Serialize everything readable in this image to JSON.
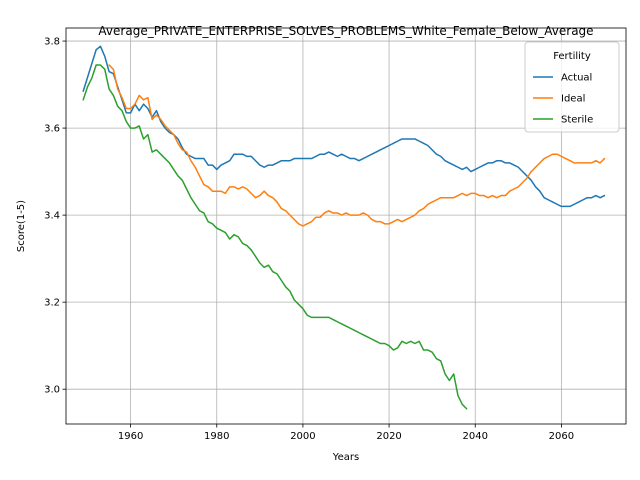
{
  "chart_data": {
    "type": "line",
    "title": "Average_PRIVATE_ENTERPRISE_SOLVES_PROBLEMS_White_Female_Below_Average",
    "xlabel": "Years",
    "ylabel": "Score(1-5)",
    "xlim": [
      1945,
      2075
    ],
    "ylim": [
      2.92,
      3.83
    ],
    "xticks": [
      1960,
      1980,
      2000,
      2020,
      2040,
      2060
    ],
    "yticks": [
      3.0,
      3.2,
      3.4,
      3.6,
      3.8
    ],
    "xtick_labels": [
      "1960",
      "1980",
      "2000",
      "2020",
      "2040",
      "2060"
    ],
    "ytick_labels": [
      "3.0",
      "3.2",
      "3.4",
      "3.6",
      "3.8"
    ],
    "grid": true,
    "legend": {
      "title": "Fertility",
      "position": "top-right"
    },
    "series": [
      {
        "name": "Actual",
        "color": "#1f77b4",
        "x": [
          1949,
          1952,
          1953,
          1954,
          1955,
          1956,
          1957,
          1958,
          1959,
          1960,
          1961,
          1962,
          1963,
          1964,
          1965,
          1966,
          1967,
          1968,
          1969,
          1970,
          1971,
          1972,
          1973,
          1974,
          1975,
          1976,
          1977,
          1978,
          1979,
          1980,
          1981,
          1982,
          1983,
          1984,
          1985,
          1986,
          1987,
          1988,
          1989,
          1990,
          1991,
          1992,
          1993,
          1994,
          1995,
          1996,
          1997,
          1998,
          1999,
          2000,
          2001,
          2002,
          2003,
          2004,
          2005,
          2006,
          2007,
          2008,
          2009,
          2010,
          2011,
          2012,
          2013,
          2014,
          2015,
          2016,
          2017,
          2018,
          2019,
          2020,
          2021,
          2022,
          2023,
          2024,
          2025,
          2026,
          2027,
          2028,
          2029,
          2030,
          2031,
          2032,
          2033,
          2034,
          2035,
          2036,
          2037,
          2038,
          2039,
          2040,
          2041,
          2042,
          2043,
          2044,
          2045,
          2046,
          2047,
          2048,
          2049,
          2050,
          2051,
          2052,
          2053,
          2054,
          2055,
          2056,
          2057,
          2058,
          2059,
          2060,
          2061,
          2062,
          2063,
          2064,
          2065,
          2066,
          2067,
          2068,
          2069,
          2070
        ],
        "values": [
          3.685,
          3.78,
          3.788,
          3.765,
          3.73,
          3.725,
          3.695,
          3.665,
          3.635,
          3.635,
          3.655,
          3.64,
          3.655,
          3.645,
          3.625,
          3.64,
          3.615,
          3.6,
          3.59,
          3.585,
          3.575,
          3.555,
          3.54,
          3.535,
          3.53,
          3.53,
          3.53,
          3.515,
          3.515,
          3.505,
          3.515,
          3.52,
          3.525,
          3.54,
          3.54,
          3.54,
          3.535,
          3.535,
          3.525,
          3.515,
          3.51,
          3.515,
          3.515,
          3.52,
          3.525,
          3.525,
          3.525,
          3.53,
          3.53,
          3.53,
          3.53,
          3.53,
          3.535,
          3.54,
          3.54,
          3.545,
          3.54,
          3.535,
          3.54,
          3.535,
          3.53,
          3.53,
          3.525,
          3.53,
          3.535,
          3.54,
          3.545,
          3.55,
          3.555,
          3.56,
          3.565,
          3.57,
          3.575,
          3.575,
          3.575,
          3.575,
          3.57,
          3.565,
          3.56,
          3.55,
          3.54,
          3.535,
          3.525,
          3.52,
          3.515,
          3.51,
          3.505,
          3.51,
          3.5,
          3.505,
          3.51,
          3.515,
          3.52,
          3.52,
          3.525,
          3.525,
          3.52,
          3.52,
          3.515,
          3.51,
          3.5,
          3.49,
          3.48,
          3.465,
          3.455,
          3.44,
          3.435,
          3.43,
          3.425,
          3.42,
          3.42,
          3.42,
          3.425,
          3.43,
          3.435,
          3.44,
          3.44,
          3.445,
          3.44,
          3.445
        ]
      },
      {
        "name": "Ideal",
        "color": "#ff7f0e",
        "x": [
          1955,
          1956,
          1957,
          1958,
          1959,
          1960,
          1961,
          1962,
          1963,
          1964,
          1965,
          1966,
          1967,
          1968,
          1969,
          1970,
          1971,
          1972,
          1973,
          1974,
          1975,
          1976,
          1977,
          1978,
          1979,
          1980,
          1981,
          1982,
          1983,
          1984,
          1985,
          1986,
          1987,
          1988,
          1989,
          1990,
          1991,
          1992,
          1993,
          1994,
          1995,
          1996,
          1997,
          1998,
          1999,
          2000,
          2001,
          2002,
          2003,
          2004,
          2005,
          2006,
          2007,
          2008,
          2009,
          2010,
          2011,
          2012,
          2013,
          2014,
          2015,
          2016,
          2017,
          2018,
          2019,
          2020,
          2021,
          2022,
          2023,
          2024,
          2025,
          2026,
          2027,
          2028,
          2029,
          2030,
          2031,
          2032,
          2033,
          2034,
          2035,
          2036,
          2037,
          2038,
          2039,
          2040,
          2041,
          2042,
          2043,
          2044,
          2045,
          2046,
          2047,
          2048,
          2049,
          2050,
          2051,
          2052,
          2053,
          2054,
          2055,
          2056,
          2057,
          2058,
          2059,
          2060,
          2061,
          2062,
          2063,
          2064,
          2065,
          2066,
          2067,
          2068,
          2069,
          2070
        ],
        "values": [
          3.745,
          3.735,
          3.69,
          3.67,
          3.645,
          3.645,
          3.655,
          3.675,
          3.665,
          3.67,
          3.62,
          3.63,
          3.62,
          3.605,
          3.595,
          3.585,
          3.565,
          3.55,
          3.545,
          3.525,
          3.51,
          3.49,
          3.47,
          3.465,
          3.455,
          3.455,
          3.455,
          3.45,
          3.465,
          3.465,
          3.46,
          3.465,
          3.46,
          3.45,
          3.44,
          3.445,
          3.455,
          3.445,
          3.44,
          3.43,
          3.415,
          3.41,
          3.4,
          3.39,
          3.38,
          3.375,
          3.38,
          3.385,
          3.395,
          3.395,
          3.405,
          3.41,
          3.405,
          3.405,
          3.4,
          3.405,
          3.4,
          3.4,
          3.4,
          3.405,
          3.4,
          3.39,
          3.385,
          3.385,
          3.38,
          3.38,
          3.385,
          3.39,
          3.385,
          3.39,
          3.395,
          3.4,
          3.41,
          3.415,
          3.425,
          3.43,
          3.435,
          3.44,
          3.44,
          3.44,
          3.44,
          3.445,
          3.45,
          3.445,
          3.45,
          3.45,
          3.445,
          3.445,
          3.44,
          3.445,
          3.44,
          3.445,
          3.445,
          3.455,
          3.46,
          3.465,
          3.475,
          3.485,
          3.5,
          3.51,
          3.52,
          3.53,
          3.535,
          3.54,
          3.54,
          3.535,
          3.53,
          3.525,
          3.52,
          3.52,
          3.52,
          3.52,
          3.52,
          3.525,
          3.52,
          3.53
        ]
      },
      {
        "name": "Sterile",
        "color": "#2ca02c",
        "x": [
          1949,
          1950,
          1951,
          1952,
          1953,
          1954,
          1955,
          1956,
          1957,
          1958,
          1959,
          1960,
          1961,
          1962,
          1963,
          1964,
          1965,
          1966,
          1967,
          1968,
          1969,
          1970,
          1971,
          1972,
          1973,
          1974,
          1975,
          1976,
          1977,
          1978,
          1979,
          1980,
          1981,
          1982,
          1983,
          1984,
          1985,
          1986,
          1987,
          1988,
          1989,
          1990,
          1991,
          1992,
          1993,
          1994,
          1995,
          1996,
          1997,
          1998,
          1999,
          2000,
          2001,
          2002,
          2003,
          2004,
          2005,
          2006,
          2007,
          2008,
          2009,
          2010,
          2011,
          2012,
          2013,
          2014,
          2015,
          2016,
          2017,
          2018,
          2019,
          2020,
          2021,
          2022,
          2023,
          2024,
          2025,
          2026,
          2027,
          2028,
          2029,
          2030,
          2031,
          2032,
          2033,
          2034,
          2035,
          2036,
          2037,
          2038
        ],
        "values": [
          3.665,
          3.695,
          3.715,
          3.745,
          3.745,
          3.735,
          3.69,
          3.675,
          3.65,
          3.64,
          3.615,
          3.6,
          3.6,
          3.605,
          3.575,
          3.585,
          3.545,
          3.55,
          3.54,
          3.53,
          3.52,
          3.505,
          3.49,
          3.48,
          3.46,
          3.44,
          3.425,
          3.41,
          3.405,
          3.385,
          3.38,
          3.37,
          3.365,
          3.36,
          3.345,
          3.355,
          3.35,
          3.335,
          3.33,
          3.32,
          3.305,
          3.29,
          3.28,
          3.285,
          3.27,
          3.265,
          3.25,
          3.235,
          3.225,
          3.205,
          3.195,
          3.185,
          3.17,
          3.165,
          3.165,
          3.165,
          3.165,
          3.165,
          3.16,
          3.155,
          3.15,
          3.145,
          3.14,
          3.135,
          3.13,
          3.125,
          3.12,
          3.115,
          3.11,
          3.105,
          3.105,
          3.1,
          3.09,
          3.095,
          3.11,
          3.105,
          3.11,
          3.105,
          3.11,
          3.09,
          3.09,
          3.085,
          3.07,
          3.065,
          3.035,
          3.02,
          3.035,
          2.985,
          2.965,
          2.955
        ]
      }
    ]
  }
}
